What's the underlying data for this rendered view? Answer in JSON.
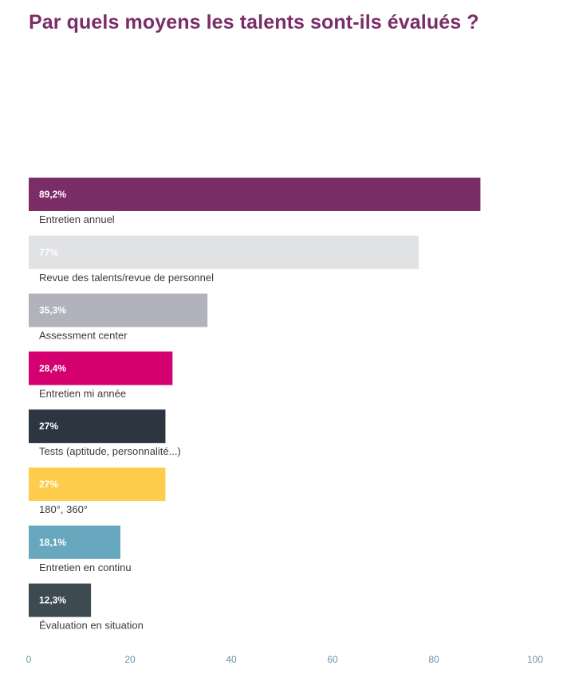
{
  "chart_data": {
    "type": "bar",
    "orientation": "horizontal",
    "title": "Par quels moyens les talents sont-ils évalués ?",
    "categories": [
      "Entretien annuel",
      "Revue des talents/revue de personnel",
      "Assessment center",
      "Entretien mi année",
      "Tests (aptitude, personnalité...)",
      "180°, 360°",
      "Entretien en continu",
      "Évaluation en situation"
    ],
    "values": [
      89.2,
      77,
      35.3,
      28.4,
      27,
      27,
      18.1,
      12.3
    ],
    "value_labels": [
      "89,2%",
      "77%",
      "35,3%",
      "28,4%",
      "27%",
      "27%",
      "18,1%",
      "12,3%"
    ],
    "colors": [
      "#7b2d68",
      "#e1e2e4",
      "#b1b2bb",
      "#d4006f",
      "#2c3640",
      "#fecd4c",
      "#67a8bf",
      "#3d4a52"
    ],
    "xlim": [
      0,
      100
    ],
    "xticks": [
      0,
      20,
      40,
      60,
      80,
      100
    ],
    "grid": false,
    "legend": "none"
  }
}
